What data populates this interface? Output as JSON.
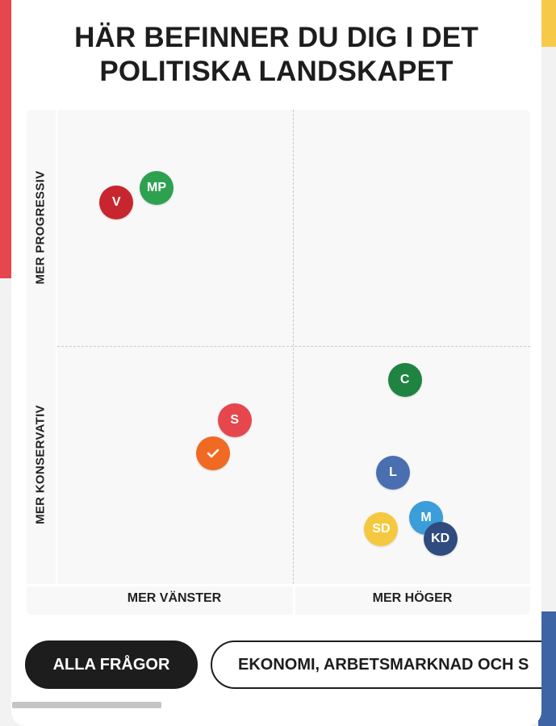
{
  "title": {
    "line1": "HÄR BEFINNER DU DIG I DET",
    "line2": "POLITISKA LANDSKAPET"
  },
  "axes": {
    "top": "MER PROGRESSIV",
    "bottom": "MER KONSERVATIV",
    "left": "MER VÄNSTER",
    "right": "MER HÖGER"
  },
  "chart_data": {
    "type": "scatter",
    "x_axis": {
      "labels": [
        "MER VÄNSTER",
        "MER HÖGER"
      ]
    },
    "y_axis": {
      "labels": [
        "MER KONSERVATIV",
        "MER PROGRESSIV"
      ]
    },
    "grid": "quadrant dividers (dashed)",
    "points": [
      {
        "label": "V",
        "color": "#c8262f",
        "x": -0.75,
        "y": 0.61
      },
      {
        "label": "MP",
        "color": "#2ea150",
        "x": -0.58,
        "y": 0.67
      },
      {
        "label": "S",
        "color": "#e5474d",
        "x": -0.25,
        "y": -0.31
      },
      {
        "label": "C",
        "color": "#1f8442",
        "x": 0.47,
        "y": -0.14
      },
      {
        "label": "L",
        "color": "#4a6fb0",
        "x": 0.42,
        "y": -0.53
      },
      {
        "label": "M",
        "color": "#3b9ed8",
        "x": 0.56,
        "y": -0.72
      },
      {
        "label": "SD",
        "color": "#f4c93f",
        "x": 0.37,
        "y": -0.77
      },
      {
        "label": "KD",
        "color": "#2f4b80",
        "x": 0.62,
        "y": -0.81
      }
    ],
    "user_point": {
      "icon": "check-icon",
      "color": "#f06a23",
      "x": -0.34,
      "y": -0.45
    }
  },
  "filters": {
    "active": "ALLA FRÅGOR",
    "other": "EKONOMI, ARBETSMARKNAD OCH S"
  }
}
